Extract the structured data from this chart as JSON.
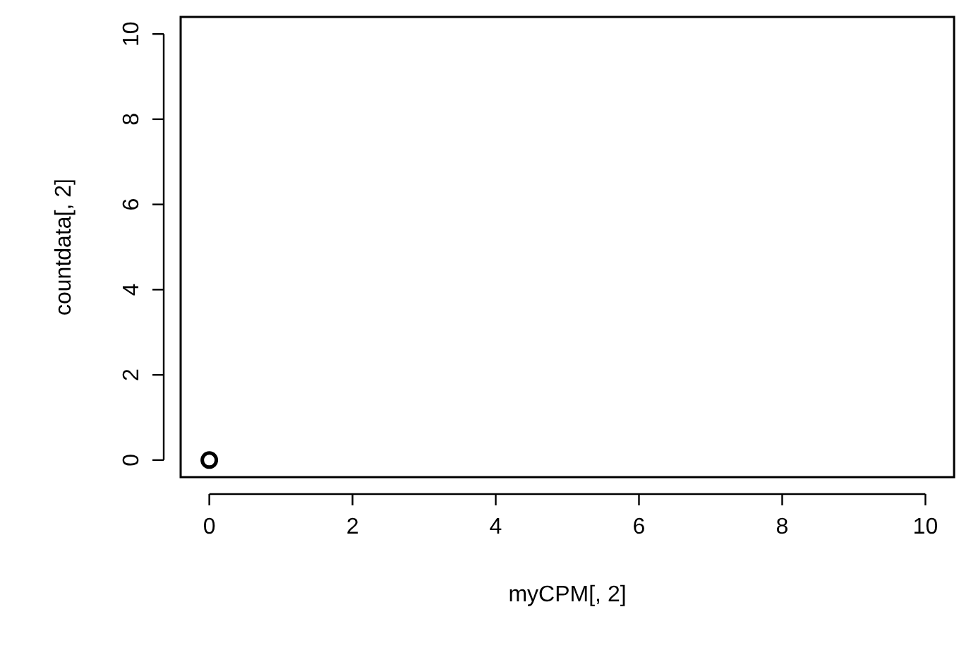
{
  "chart_data": {
    "type": "scatter",
    "xlabel": "myCPM[, 2]",
    "ylabel": "countdata[, 2]",
    "x": [
      0
    ],
    "values": [
      0
    ],
    "color": "#000000",
    "marker": "circle",
    "xlim": [
      -0.4,
      10.4
    ],
    "ylim": [
      -0.4,
      10.4
    ],
    "xticks": [
      0,
      2,
      4,
      6,
      8,
      10
    ],
    "yticks": [
      0,
      2,
      4,
      6,
      8,
      10
    ],
    "grid": false
  }
}
